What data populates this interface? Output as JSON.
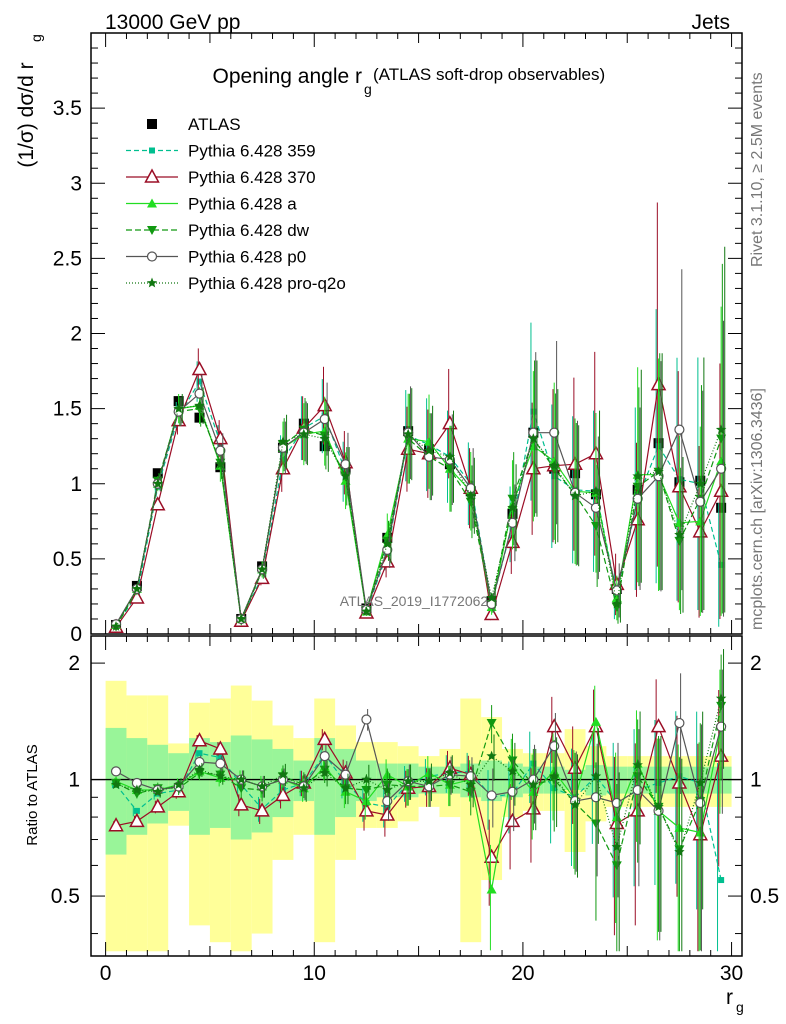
{
  "header": {
    "energy_label": "13000 GeV pp",
    "category_label": "Jets",
    "rivet_label": "Rivet 3.1.10, ≥ 2.5M events",
    "mcplots_label": "mcplots.cern.ch [arXiv:1306.3436]",
    "analysis_id": "ATLAS_2019_I1772062",
    "title_main": "Opening angle r",
    "title_sub": "g",
    "title_rest": "(ATLAS soft-drop observables)"
  },
  "axes": {
    "ylabel_main": "(1/σ) dσ/d r",
    "ylabel_sub": "g",
    "xlabel_main": "r",
    "xlabel_sub": "g",
    "ratio_ylabel": "Ratio to ATLAS"
  },
  "chart_data": [
    {
      "type": "scatter",
      "panel": "main",
      "xlim": [
        -0.7,
        30.5
      ],
      "ylim": [
        0,
        4.0
      ],
      "x_ticks": [
        "0",
        "10",
        "20",
        "30"
      ],
      "y_ticks": [
        "0",
        "0.5",
        "1",
        "1.5",
        "2",
        "2.5",
        "3",
        "3.5"
      ],
      "x": [
        0.5,
        1.5,
        2.5,
        3.5,
        4.5,
        5.5,
        6.5,
        7.5,
        8.5,
        9.5,
        10.5,
        11.5,
        12.5,
        13.5,
        14.5,
        15.5,
        16.5,
        17.5,
        18.5,
        19.5,
        20.5,
        21.5,
        22.5,
        23.5,
        24.5,
        25.5,
        26.5,
        27.5,
        28.5,
        29.5
      ],
      "series": [
        {
          "name": "ATLAS",
          "color": "#000000",
          "marker": "square",
          "line": "none",
          "values": [
            0.06,
            0.32,
            1.07,
            1.55,
            1.44,
            1.11,
            0.1,
            0.45,
            1.24,
            1.4,
            1.25,
            1.1,
            0.17,
            0.64,
            1.35,
            1.23,
            1.13,
            0.95,
            0.22,
            0.8,
            1.34,
            1.1,
            1.07,
            0.93,
            0.3,
            0.96,
            1.27,
            1.01,
            1.02,
            0.84
          ]
        },
        {
          "name": "Pythia 6.428 359",
          "color": "#00bf8f",
          "marker": "square",
          "line": "dashed",
          "values": [
            0.06,
            0.26,
            0.98,
            1.45,
            1.68,
            1.27,
            0.1,
            0.38,
            1.16,
            1.37,
            1.45,
            1.08,
            0.15,
            0.54,
            1.32,
            1.26,
            1.18,
            1.0,
            0.2,
            0.73,
            1.48,
            1.05,
            0.96,
            0.95,
            0.26,
            0.9,
            1.25,
            1.03,
            1.0,
            0.46
          ]
        },
        {
          "name": "Pythia 6.428 370",
          "color": "#9b0e26",
          "marker": "triangle-open",
          "line": "solid",
          "values": [
            0.045,
            0.24,
            0.86,
            1.42,
            1.76,
            1.3,
            0.085,
            0.37,
            1.1,
            1.37,
            1.52,
            1.14,
            0.14,
            0.48,
            1.23,
            1.2,
            1.4,
            0.97,
            0.13,
            0.61,
            1.1,
            1.12,
            1.13,
            1.2,
            0.33,
            0.76,
            1.66,
            0.98,
            0.68,
            0.95
          ]
        },
        {
          "name": "Pythia 6.428 a",
          "color": "#22dd22",
          "marker": "triangle",
          "line": "solid",
          "values": [
            0.06,
            0.3,
            1.0,
            1.5,
            1.52,
            1.12,
            0.1,
            0.43,
            1.24,
            1.33,
            1.35,
            1.02,
            0.15,
            0.66,
            1.3,
            1.28,
            1.1,
            0.95,
            0.18,
            0.86,
            1.25,
            1.15,
            0.95,
            0.94,
            0.24,
            1.06,
            1.06,
            0.74,
            0.75,
            1.15
          ]
        },
        {
          "name": "Pythia 6.428 dw",
          "color": "#119911",
          "marker": "triangle-down",
          "line": "dashed",
          "values": [
            0.05,
            0.29,
            1.02,
            1.48,
            1.5,
            1.14,
            0.09,
            0.42,
            1.26,
            1.36,
            1.32,
            1.05,
            0.16,
            0.62,
            1.3,
            1.18,
            1.1,
            0.88,
            0.2,
            0.9,
            1.3,
            1.1,
            0.93,
            0.72,
            0.18,
            0.98,
            1.08,
            0.62,
            0.9,
            1.3
          ]
        },
        {
          "name": "Pythia 6.428 p0",
          "color": "#555555",
          "marker": "circle-open",
          "line": "solid",
          "values": [
            0.065,
            0.3,
            1.0,
            1.48,
            1.6,
            1.22,
            0.1,
            0.43,
            1.24,
            1.34,
            1.43,
            1.13,
            0.16,
            0.56,
            1.34,
            1.18,
            1.16,
            0.97,
            0.2,
            0.74,
            1.34,
            1.34,
            0.94,
            0.84,
            0.29,
            0.9,
            1.05,
            1.36,
            0.88,
            1.1
          ]
        },
        {
          "name": "Pythia 6.428 pro-q2o",
          "color": "#117711",
          "marker": "star",
          "line": "dotted",
          "values": [
            0.05,
            0.3,
            1.0,
            1.5,
            1.52,
            1.13,
            0.1,
            0.43,
            1.28,
            1.33,
            1.3,
            1.05,
            0.15,
            0.6,
            1.33,
            1.22,
            1.18,
            0.92,
            0.24,
            0.84,
            1.3,
            1.12,
            0.92,
            0.95,
            0.2,
            1.05,
            1.08,
            0.66,
            1.0,
            1.36
          ]
        }
      ]
    },
    {
      "type": "scatter",
      "panel": "ratio",
      "xlim": [
        -0.7,
        30.5
      ],
      "ylim": [
        0.35,
        2.35
      ],
      "x_ticks": [
        "0",
        "10",
        "20",
        "30"
      ],
      "y_ticks": [
        "0.5",
        "1",
        "2"
      ],
      "x": [
        0.5,
        1.5,
        2.5,
        3.5,
        4.5,
        5.5,
        6.5,
        7.5,
        8.5,
        9.5,
        10.5,
        11.5,
        12.5,
        13.5,
        14.5,
        15.5,
        16.5,
        17.5,
        18.5,
        19.5,
        20.5,
        21.5,
        22.5,
        23.5,
        24.5,
        25.5,
        26.5,
        27.5,
        28.5,
        29.5
      ],
      "bands_inner_half_width": [
        0.36,
        0.28,
        0.23,
        0.17,
        0.28,
        0.25,
        0.3,
        0.27,
        0.2,
        0.12,
        0.28,
        0.2,
        0.12,
        0.1,
        0.1,
        0.08,
        0.08,
        0.1,
        0.12,
        0.1,
        0.08,
        0.08,
        0.06,
        0.09,
        0.08,
        0.08,
        0.08,
        0.08,
        0.08,
        0.08
      ],
      "bands_outer_half_width": [
        0.8,
        0.65,
        0.65,
        0.24,
        0.58,
        0.62,
        0.75,
        0.6,
        0.38,
        0.28,
        0.62,
        0.38,
        0.25,
        0.25,
        0.22,
        0.15,
        0.2,
        0.62,
        0.45,
        0.2,
        0.17,
        0.17,
        0.35,
        0.22,
        0.15,
        0.15,
        0.15,
        0.15,
        0.15,
        0.15
      ],
      "series": [
        {
          "name": "Pythia 6.428 359",
          "values": [
            0.97,
            0.83,
            0.92,
            0.94,
            1.17,
            1.14,
            0.97,
            0.84,
            0.94,
            0.98,
            1.16,
            0.98,
            0.87,
            0.85,
            0.98,
            1.02,
            1.04,
            1.05,
            0.9,
            0.92,
            1.1,
            0.95,
            0.9,
            1.02,
            0.87,
            0.94,
            0.98,
            1.02,
            0.98,
            0.55
          ]
        },
        {
          "name": "Pythia 6.428 370",
          "values": [
            0.76,
            0.78,
            0.85,
            0.93,
            1.26,
            1.2,
            0.86,
            0.83,
            0.91,
            0.98,
            1.27,
            1.04,
            0.83,
            0.81,
            0.95,
            0.96,
            1.07,
            1.03,
            0.63,
            0.78,
            0.84,
            1.37,
            1.07,
            1.37,
            0.77,
            0.83,
            1.37,
            0.98,
            0.72,
            1.15
          ]
        },
        {
          "name": "Pythia 6.428 a",
          "values": [
            0.99,
            0.94,
            0.94,
            0.97,
            1.05,
            1.01,
            1.0,
            0.96,
            1.0,
            0.95,
            1.08,
            0.93,
            0.88,
            1.03,
            0.96,
            1.04,
            0.97,
            1.0,
            0.52,
            1.08,
            0.93,
            1.05,
            0.89,
            1.41,
            0.8,
            1.1,
            0.83,
            0.75,
            0.73,
            1.37
          ]
        },
        {
          "name": "Pythia 6.428 dw",
          "values": [
            0.98,
            0.92,
            0.95,
            0.95,
            1.04,
            1.03,
            0.95,
            0.94,
            1.02,
            0.97,
            1.06,
            0.95,
            0.94,
            0.97,
            0.96,
            0.96,
            0.97,
            0.93,
            1.4,
            1.12,
            0.97,
            1.0,
            0.87,
            0.77,
            0.6,
            1.02,
            0.85,
            0.66,
            0.88,
            1.55
          ]
        },
        {
          "name": "Pythia 6.428 p0",
          "values": [
            1.05,
            0.98,
            0.94,
            0.96,
            1.11,
            1.1,
            1.0,
            0.96,
            1.0,
            0.96,
            1.15,
            1.03,
            1.43,
            0.88,
            0.99,
            0.96,
            1.03,
            1.02,
            0.91,
            0.93,
            1.0,
            1.22,
            0.88,
            0.9,
            0.87,
            0.94,
            0.83,
            1.4,
            0.87,
            1.37
          ]
        },
        {
          "name": "Pythia 6.428 pro-q2o",
          "values": [
            0.97,
            0.94,
            0.93,
            0.97,
            1.06,
            1.02,
            1.0,
            0.96,
            1.03,
            0.95,
            1.04,
            0.95,
            1.0,
            0.94,
            0.99,
            0.99,
            1.04,
            0.97,
            1.15,
            1.05,
            0.97,
            1.02,
            0.86,
            1.02,
            0.67,
            1.09,
            0.85,
            0.65,
            0.98,
            1.62
          ]
        }
      ]
    }
  ]
}
